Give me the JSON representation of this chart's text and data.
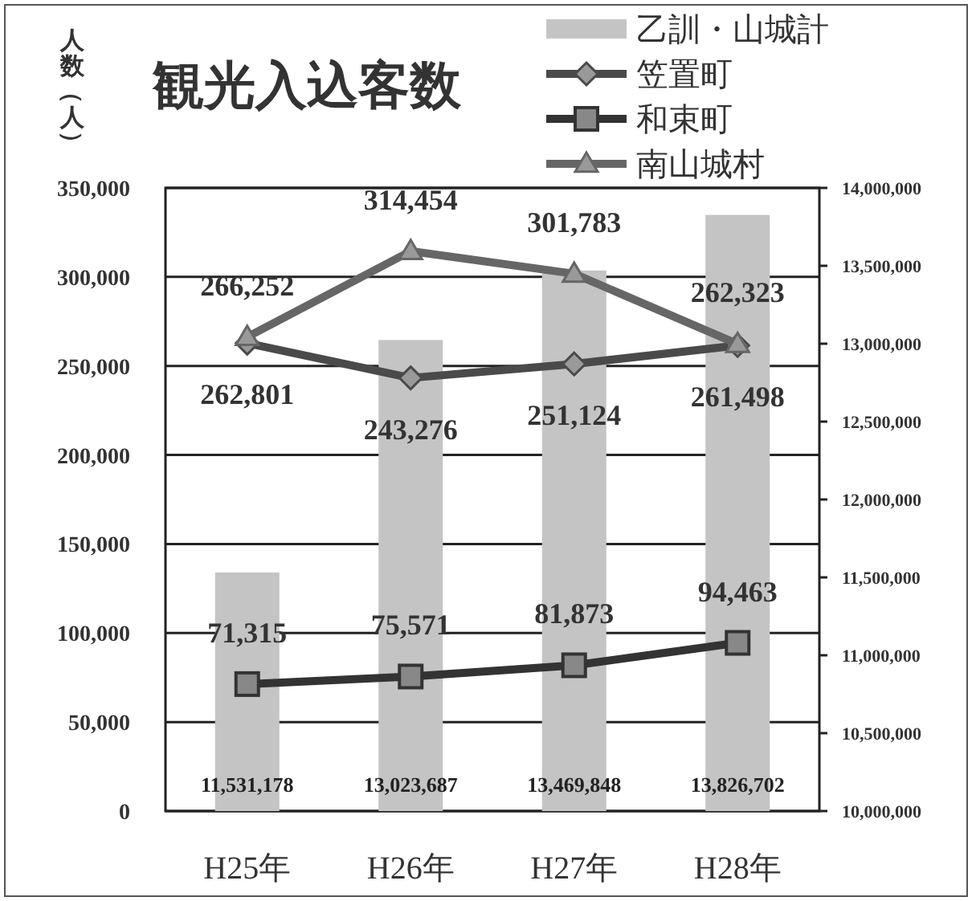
{
  "chart_data": {
    "type": "bar",
    "title": "観光入込客数",
    "ylabel": "人数（人）",
    "categories": [
      "H25年",
      "H26年",
      "H27年",
      "H28年"
    ],
    "series": [
      {
        "name": "乙訓・山城計",
        "axis": "y2",
        "color": "#c4c4c4",
        "values": [
          11531178,
          13023687,
          13469848,
          13826702
        ],
        "value_labels": [
          "11,531,178",
          "13,023,687",
          "13,469,848",
          "13,826,702"
        ]
      },
      {
        "name": "笠置町",
        "type": "line",
        "marker": "diamond",
        "color": "#4a4a4a",
        "values": [
          262801,
          243276,
          251124,
          261498
        ],
        "value_labels": [
          "262,801",
          "243,276",
          "251,124",
          "261,498"
        ]
      },
      {
        "name": "和束町",
        "type": "line",
        "marker": "square",
        "color": "#333333",
        "values": [
          71315,
          75571,
          81873,
          94463
        ],
        "value_labels": [
          "71,315",
          "75,571",
          "81,873",
          "94,463"
        ]
      },
      {
        "name": "南山城村",
        "type": "line",
        "marker": "triangle",
        "color": "#666666",
        "values": [
          266252,
          314454,
          301783,
          262323
        ],
        "value_labels": [
          "266,252",
          "314,454",
          "301,783",
          "262,323"
        ]
      }
    ],
    "ylim": [
      0,
      350000
    ],
    "yticks": [
      {
        "value": 0,
        "label": "0"
      },
      {
        "value": 50000,
        "label": "50,000"
      },
      {
        "value": 100000,
        "label": "100,000"
      },
      {
        "value": 150000,
        "label": "150,000"
      },
      {
        "value": 200000,
        "label": "200,000"
      },
      {
        "value": 250000,
        "label": "250,000"
      },
      {
        "value": 300000,
        "label": "300,000"
      },
      {
        "value": 350000,
        "label": "350,000"
      }
    ],
    "y2lim": [
      10000000,
      14000000
    ],
    "y2ticks": [
      {
        "value": 10000000,
        "label": "10,000,000"
      },
      {
        "value": 10500000,
        "label": "10,500,000"
      },
      {
        "value": 11000000,
        "label": "11,000,000"
      },
      {
        "value": 11500000,
        "label": "11,500,000"
      },
      {
        "value": 12000000,
        "label": "12,000,000"
      },
      {
        "value": 12500000,
        "label": "12,500,000"
      },
      {
        "value": 13000000,
        "label": "13,000,000"
      },
      {
        "value": 13500000,
        "label": "13,500,000"
      },
      {
        "value": 14000000,
        "label": "14,000,000"
      }
    ],
    "grid": "y",
    "legend": "top right"
  }
}
